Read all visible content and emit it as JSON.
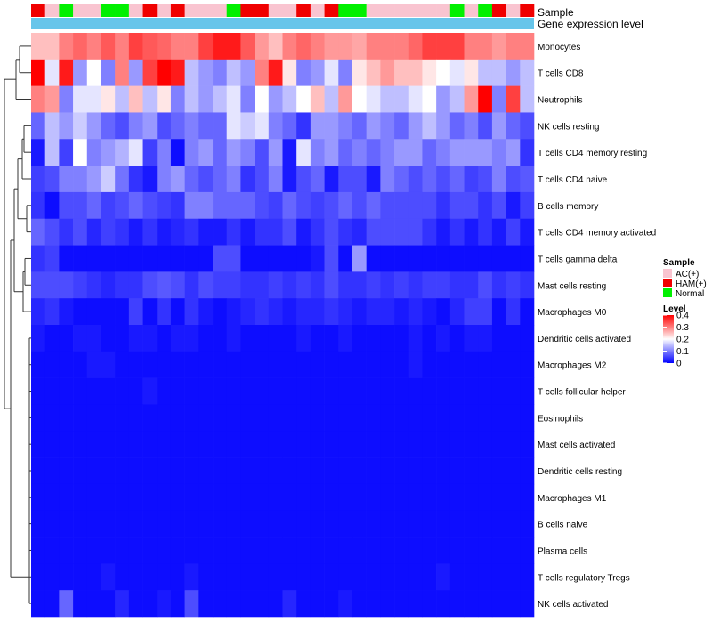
{
  "chart_data": {
    "type": "heatmap",
    "title": "",
    "annotation_tracks": [
      "Sample",
      "Gene expression level"
    ],
    "rows": [
      "Monocytes",
      "T cells CD8",
      "Neutrophils",
      "NK cells resting",
      "T cells CD4 memory resting",
      "T cells CD4 naive",
      "B cells memory",
      "T cells CD4 memory activated",
      "T cells gamma delta",
      "Mast cells resting",
      "Macrophages M0",
      "Dendritic cells activated",
      "Macrophages M2",
      "T cells follicular helper",
      "Eosinophils",
      "Mast cells activated",
      "Dendritic cells resting",
      "Macrophages M1",
      "B cells naive",
      "Plasma cells",
      "T cells regulatory  Tregs",
      "NK cells activated"
    ],
    "column_samples": [
      "HAM(+)",
      "AC(+)",
      "Normal",
      "AC(+)",
      "AC(+)",
      "Normal",
      "Normal",
      "AC(+)",
      "HAM(+)",
      "AC(+)",
      "HAM(+)",
      "AC(+)",
      "AC(+)",
      "AC(+)",
      "Normal",
      "HAM(+)",
      "HAM(+)",
      "AC(+)",
      "AC(+)",
      "HAM(+)",
      "AC(+)",
      "HAM(+)",
      "Normal",
      "Normal",
      "AC(+)",
      "AC(+)",
      "AC(+)",
      "AC(+)",
      "AC(+)",
      "AC(+)",
      "Normal",
      "AC(+)",
      "Normal",
      "HAM(+)",
      "AC(+)",
      "HAM(+)"
    ],
    "values": [
      [
        0.25,
        0.25,
        0.3,
        0.32,
        0.3,
        0.33,
        0.3,
        0.35,
        0.33,
        0.32,
        0.3,
        0.3,
        0.35,
        0.38,
        0.38,
        0.33,
        0.28,
        0.25,
        0.3,
        0.32,
        0.3,
        0.28,
        0.28,
        0.27,
        0.3,
        0.3,
        0.3,
        0.32,
        0.35,
        0.35,
        0.35,
        0.3,
        0.3,
        0.28,
        0.3,
        0.3
      ],
      [
        0.4,
        0.18,
        0.38,
        0.12,
        0.2,
        0.1,
        0.3,
        0.12,
        0.35,
        0.4,
        0.38,
        0.15,
        0.12,
        0.1,
        0.15,
        0.12,
        0.3,
        0.38,
        0.22,
        0.1,
        0.12,
        0.18,
        0.1,
        0.22,
        0.25,
        0.28,
        0.25,
        0.25,
        0.22,
        0.2,
        0.18,
        0.22,
        0.15,
        0.15,
        0.12,
        0.15
      ],
      [
        0.3,
        0.28,
        0.1,
        0.18,
        0.18,
        0.22,
        0.15,
        0.25,
        0.15,
        0.22,
        0.1,
        0.15,
        0.12,
        0.15,
        0.18,
        0.1,
        0.2,
        0.12,
        0.15,
        0.2,
        0.25,
        0.15,
        0.28,
        0.2,
        0.18,
        0.15,
        0.15,
        0.18,
        0.2,
        0.12,
        0.15,
        0.28,
        0.4,
        0.1,
        0.35,
        0.15
      ],
      [
        0.08,
        0.15,
        0.12,
        0.16,
        0.12,
        0.08,
        0.06,
        0.1,
        0.12,
        0.06,
        0.08,
        0.1,
        0.08,
        0.08,
        0.18,
        0.16,
        0.18,
        0.1,
        0.08,
        0.04,
        0.12,
        0.12,
        0.1,
        0.08,
        0.12,
        0.1,
        0.08,
        0.12,
        0.15,
        0.12,
        0.08,
        0.1,
        0.06,
        0.12,
        0.08,
        0.06
      ],
      [
        0.02,
        0.15,
        0.05,
        0.2,
        0.1,
        0.12,
        0.14,
        0.18,
        0.05,
        0.1,
        0.01,
        0.1,
        0.12,
        0.08,
        0.12,
        0.1,
        0.06,
        0.12,
        0.02,
        0.18,
        0.1,
        0.12,
        0.08,
        0.1,
        0.08,
        0.1,
        0.12,
        0.12,
        0.08,
        0.1,
        0.12,
        0.12,
        0.12,
        0.1,
        0.12,
        0.04
      ],
      [
        0.05,
        0.06,
        0.1,
        0.1,
        0.12,
        0.16,
        0.09,
        0.04,
        0.02,
        0.1,
        0.12,
        0.08,
        0.06,
        0.08,
        0.1,
        0.04,
        0.06,
        0.1,
        0.02,
        0.06,
        0.08,
        0.02,
        0.06,
        0.06,
        0.02,
        0.1,
        0.08,
        0.06,
        0.08,
        0.06,
        0.08,
        0.05,
        0.06,
        0.1,
        0.06,
        0.07
      ],
      [
        0.04,
        0.01,
        0.06,
        0.06,
        0.08,
        0.05,
        0.06,
        0.08,
        0.06,
        0.05,
        0.04,
        0.1,
        0.1,
        0.08,
        0.08,
        0.08,
        0.06,
        0.05,
        0.08,
        0.06,
        0.05,
        0.06,
        0.08,
        0.06,
        0.08,
        0.06,
        0.06,
        0.06,
        0.06,
        0.04,
        0.06,
        0.06,
        0.04,
        0.06,
        0.02,
        0.05
      ],
      [
        0.08,
        0.06,
        0.04,
        0.06,
        0.03,
        0.05,
        0.04,
        0.02,
        0.04,
        0.02,
        0.03,
        0.04,
        0.02,
        0.02,
        0.04,
        0.02,
        0.04,
        0.04,
        0.06,
        0.02,
        0.04,
        0.06,
        0.04,
        0.03,
        0.06,
        0.06,
        0.06,
        0.06,
        0.04,
        0.02,
        0.04,
        0.02,
        0.04,
        0.02,
        0.05,
        0.02
      ],
      [
        0.04,
        0.05,
        0.01,
        0.01,
        0.01,
        0.01,
        0.01,
        0.01,
        0.01,
        0.01,
        0.01,
        0.01,
        0.01,
        0.06,
        0.06,
        0.01,
        0.01,
        0.01,
        0.01,
        0.01,
        0.02,
        0.06,
        0.01,
        0.12,
        0.01,
        0.01,
        0.01,
        0.01,
        0.01,
        0.01,
        0.01,
        0.01,
        0.01,
        0.01,
        0.01,
        0.01
      ],
      [
        0.06,
        0.06,
        0.06,
        0.05,
        0.04,
        0.03,
        0.04,
        0.04,
        0.06,
        0.07,
        0.06,
        0.04,
        0.06,
        0.05,
        0.05,
        0.04,
        0.04,
        0.05,
        0.04,
        0.05,
        0.04,
        0.06,
        0.04,
        0.04,
        0.05,
        0.04,
        0.05,
        0.04,
        0.05,
        0.05,
        0.04,
        0.04,
        0.06,
        0.04,
        0.05,
        0.04
      ],
      [
        0.03,
        0.04,
        0.02,
        0.01,
        0.01,
        0.01,
        0.01,
        0.05,
        0.01,
        0.04,
        0.01,
        0.04,
        0.02,
        0.01,
        0.02,
        0.03,
        0.04,
        0.03,
        0.02,
        0.03,
        0.03,
        0.04,
        0.03,
        0.02,
        0.03,
        0.03,
        0.02,
        0.03,
        0.02,
        0.01,
        0.03,
        0.05,
        0.05,
        0.01,
        0.04,
        0.01
      ],
      [
        0.02,
        0.01,
        0.01,
        0.02,
        0.02,
        0.01,
        0.01,
        0.02,
        0.02,
        0.01,
        0.02,
        0.02,
        0.01,
        0.01,
        0.02,
        0.01,
        0.01,
        0.01,
        0.01,
        0.02,
        0.01,
        0.01,
        0.02,
        0.01,
        0.01,
        0.01,
        0.01,
        0.02,
        0.01,
        0.02,
        0.01,
        0.02,
        0.02,
        0.01,
        0.01,
        0.01
      ],
      [
        0.01,
        0.01,
        0.01,
        0.01,
        0.02,
        0.02,
        0.01,
        0.01,
        0.01,
        0.01,
        0.01,
        0.01,
        0.01,
        0.01,
        0.01,
        0.01,
        0.01,
        0.01,
        0.01,
        0.01,
        0.01,
        0.01,
        0.01,
        0.01,
        0.01,
        0.01,
        0.01,
        0.02,
        0.01,
        0.01,
        0.01,
        0.01,
        0.01,
        0.01,
        0.01,
        0.01
      ],
      [
        0.01,
        0.01,
        0.01,
        0.01,
        0.01,
        0.01,
        0.01,
        0.01,
        0.02,
        0.01,
        0.01,
        0.01,
        0.01,
        0.01,
        0.01,
        0.01,
        0.01,
        0.01,
        0.01,
        0.01,
        0.01,
        0.01,
        0.01,
        0.01,
        0.01,
        0.01,
        0.01,
        0.01,
        0.01,
        0.01,
        0.01,
        0.01,
        0.01,
        0.01,
        0.01,
        0.01
      ],
      [
        0.01,
        0.01,
        0.01,
        0.01,
        0.01,
        0.01,
        0.01,
        0.01,
        0.01,
        0.01,
        0.01,
        0.01,
        0.01,
        0.01,
        0.01,
        0.01,
        0.01,
        0.01,
        0.01,
        0.01,
        0.01,
        0.01,
        0.01,
        0.01,
        0.01,
        0.01,
        0.01,
        0.01,
        0.01,
        0.01,
        0.01,
        0.01,
        0.01,
        0.01,
        0.01,
        0.01
      ],
      [
        0.01,
        0.01,
        0.01,
        0.01,
        0.01,
        0.01,
        0.01,
        0.01,
        0.01,
        0.01,
        0.01,
        0.01,
        0.01,
        0.01,
        0.01,
        0.01,
        0.01,
        0.01,
        0.01,
        0.01,
        0.01,
        0.01,
        0.01,
        0.01,
        0.01,
        0.01,
        0.01,
        0.01,
        0.01,
        0.01,
        0.01,
        0.01,
        0.01,
        0.01,
        0.01,
        0.01
      ],
      [
        0.01,
        0.01,
        0.01,
        0.01,
        0.01,
        0.01,
        0.01,
        0.01,
        0.01,
        0.01,
        0.01,
        0.01,
        0.01,
        0.01,
        0.01,
        0.01,
        0.01,
        0.01,
        0.01,
        0.01,
        0.01,
        0.01,
        0.01,
        0.01,
        0.01,
        0.01,
        0.01,
        0.01,
        0.01,
        0.01,
        0.01,
        0.01,
        0.01,
        0.01,
        0.01,
        0.01
      ],
      [
        0.01,
        0.01,
        0.01,
        0.01,
        0.01,
        0.01,
        0.01,
        0.01,
        0.01,
        0.01,
        0.01,
        0.01,
        0.01,
        0.01,
        0.01,
        0.01,
        0.01,
        0.01,
        0.01,
        0.01,
        0.01,
        0.01,
        0.01,
        0.01,
        0.01,
        0.01,
        0.01,
        0.01,
        0.01,
        0.01,
        0.01,
        0.01,
        0.01,
        0.01,
        0.01,
        0.01
      ],
      [
        0.01,
        0.01,
        0.01,
        0.01,
        0.01,
        0.01,
        0.01,
        0.01,
        0.01,
        0.01,
        0.01,
        0.01,
        0.01,
        0.01,
        0.01,
        0.01,
        0.01,
        0.01,
        0.01,
        0.01,
        0.01,
        0.01,
        0.01,
        0.01,
        0.01,
        0.01,
        0.01,
        0.01,
        0.01,
        0.01,
        0.01,
        0.01,
        0.01,
        0.01,
        0.01,
        0.01
      ],
      [
        0.01,
        0.01,
        0.01,
        0.01,
        0.01,
        0.01,
        0.01,
        0.01,
        0.01,
        0.01,
        0.01,
        0.01,
        0.01,
        0.01,
        0.01,
        0.01,
        0.01,
        0.01,
        0.01,
        0.01,
        0.01,
        0.01,
        0.01,
        0.01,
        0.01,
        0.01,
        0.01,
        0.01,
        0.01,
        0.01,
        0.01,
        0.01,
        0.01,
        0.01,
        0.01,
        0.01
      ],
      [
        0.01,
        0.01,
        0.01,
        0.01,
        0.01,
        0.02,
        0.01,
        0.01,
        0.01,
        0.01,
        0.01,
        0.02,
        0.01,
        0.01,
        0.01,
        0.01,
        0.01,
        0.01,
        0.01,
        0.01,
        0.01,
        0.01,
        0.01,
        0.01,
        0.01,
        0.01,
        0.01,
        0.01,
        0.01,
        0.02,
        0.01,
        0.01,
        0.01,
        0.01,
        0.01,
        0.01
      ],
      [
        0.01,
        0.01,
        0.08,
        0.01,
        0.01,
        0.01,
        0.03,
        0.01,
        0.01,
        0.02,
        0.01,
        0.06,
        0.01,
        0.01,
        0.01,
        0.01,
        0.01,
        0.01,
        0.03,
        0.01,
        0.01,
        0.01,
        0.02,
        0.01,
        0.01,
        0.01,
        0.01,
        0.01,
        0.01,
        0.01,
        0.01,
        0.01,
        0.01,
        0.01,
        0.01,
        0.01
      ]
    ],
    "legend": {
      "sample_title": "Sample",
      "sample_entries": [
        {
          "label": "AC(+)",
          "color": "#f9c4d0"
        },
        {
          "label": "HAM(+)",
          "color": "#f00000"
        },
        {
          "label": "Normal",
          "color": "#00f000"
        }
      ],
      "level_title": "Level",
      "level_ticks": [
        "0.4",
        "0.3",
        "0.2",
        "0.1",
        "0"
      ],
      "level_range": [
        0,
        0.4
      ]
    },
    "colors": {
      "low": "#0000ff",
      "mid": "#ffffff",
      "high": "#ff0000",
      "gene_track": "#67c5ea"
    }
  }
}
